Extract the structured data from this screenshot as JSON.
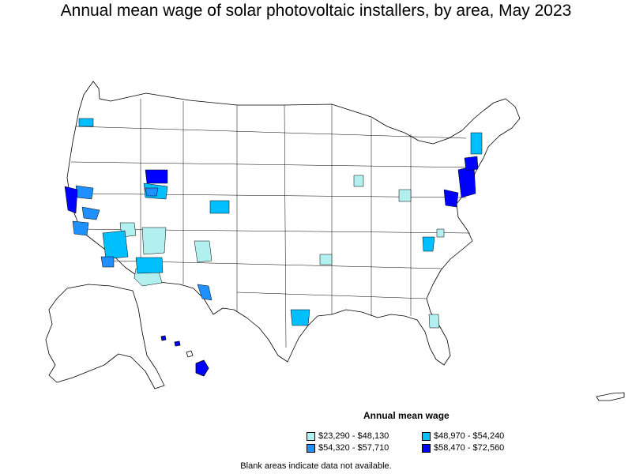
{
  "title": "Annual mean wage of solar photovoltaic installers, by area, May 2023",
  "legend": {
    "title": "Annual mean wage",
    "items": [
      {
        "label": "$23,290 - $48,130",
        "color": "#b2f0f0"
      },
      {
        "label": "$48,970 - $54,240",
        "color": "#00bfff"
      },
      {
        "label": "$54,320 - $57,710",
        "color": "#1e90ff"
      },
      {
        "label": "$58,470 - $72,560",
        "color": "#0000ff"
      }
    ]
  },
  "footnote": "Blank areas indicate data not available."
}
